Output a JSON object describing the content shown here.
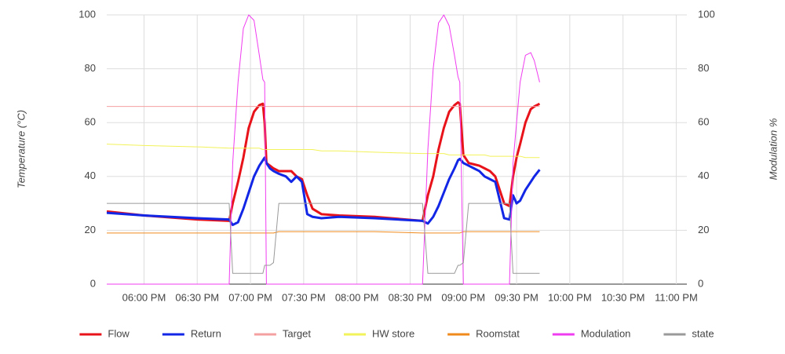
{
  "chart_data": {
    "type": "line",
    "x": [
      1059,
      1080,
      1110,
      1128,
      1130,
      1133,
      1136,
      1139,
      1142,
      1145,
      1147,
      1148,
      1149,
      1151,
      1153,
      1156,
      1160,
      1163,
      1166,
      1169,
      1172,
      1175,
      1180,
      1190,
      1210,
      1237,
      1240,
      1243,
      1246,
      1249,
      1252,
      1255,
      1257,
      1258,
      1260,
      1263,
      1266,
      1269,
      1272,
      1275,
      1278,
      1283,
      1286,
      1288,
      1290,
      1292,
      1295,
      1298,
      1300,
      1303
    ],
    "xlim": [
      1059,
      1386
    ],
    "xticks": [
      {
        "value": 1080,
        "label": "06:00 PM"
      },
      {
        "value": 1110,
        "label": "06:30 PM"
      },
      {
        "value": 1140,
        "label": "07:00 PM"
      },
      {
        "value": 1170,
        "label": "07:30 PM"
      },
      {
        "value": 1200,
        "label": "08:00 PM"
      },
      {
        "value": 1230,
        "label": "08:30 PM"
      },
      {
        "value": 1260,
        "label": "09:00 PM"
      },
      {
        "value": 1290,
        "label": "09:30 PM"
      },
      {
        "value": 1320,
        "label": "10:00 PM"
      },
      {
        "value": 1350,
        "label": "10:30 PM"
      },
      {
        "value": 1380,
        "label": "11:00 PM"
      }
    ],
    "ylabel": "Temperature (°C)",
    "y2label": "Modulation %",
    "ylim": [
      0,
      100
    ],
    "yticks": [
      0,
      20,
      40,
      60,
      80,
      100
    ],
    "y2lim": [
      0,
      100
    ],
    "y2ticks": [
      0,
      20,
      40,
      60,
      80,
      100
    ],
    "grid": true,
    "legend": "bottom",
    "series": [
      {
        "name": "Flow",
        "color": "#e8131a",
        "width": 3,
        "values": [
          27,
          25.5,
          24,
          23.5,
          30,
          38,
          47,
          58,
          64,
          66.5,
          67,
          60,
          45,
          44,
          43,
          42,
          42,
          42,
          40,
          39,
          33,
          28,
          26,
          25.5,
          25,
          23.5,
          33,
          40,
          50,
          58,
          64,
          66.5,
          67.5,
          67,
          48,
          45,
          44.5,
          44,
          43,
          42,
          40,
          30,
          29,
          40,
          47,
          52,
          60,
          65,
          66,
          67
        ]
      },
      {
        "name": "Return",
        "color": "#1226e6",
        "width": 3,
        "values": [
          26.5,
          25.5,
          24.5,
          24,
          22,
          23,
          28,
          34,
          40,
          44,
          46,
          47,
          45,
          43,
          42,
          41,
          40,
          38,
          40,
          38,
          26,
          25,
          24.5,
          25,
          24.5,
          23.5,
          22.5,
          25,
          29,
          34,
          39,
          43,
          46,
          46.5,
          45,
          44,
          43,
          42,
          40,
          39,
          38,
          24.5,
          24,
          33,
          30,
          31,
          35,
          38,
          40,
          42.5
        ]
      },
      {
        "name": "Target",
        "color": "#f4a0a0",
        "width": 1,
        "values": [
          66,
          66,
          66,
          66,
          66,
          66,
          66,
          66,
          66,
          66,
          66,
          66,
          66,
          66,
          66,
          66,
          66,
          66,
          66,
          66,
          66,
          66,
          66,
          66,
          66,
          66,
          66,
          66,
          66,
          66,
          66,
          66,
          66,
          66,
          66,
          66,
          66,
          66,
          66,
          66,
          66,
          66,
          66,
          66,
          66,
          66,
          66,
          66,
          66,
          66
        ]
      },
      {
        "name": "HW store",
        "color": "#f2f25a",
        "width": 1,
        "values": [
          52,
          51.5,
          51,
          50.5,
          50.5,
          50.5,
          50.5,
          50.5,
          50.5,
          50.5,
          50,
          50,
          50,
          50,
          50,
          50,
          50,
          50,
          50,
          50,
          50,
          50,
          49.5,
          49.5,
          49,
          48.5,
          48.5,
          48.5,
          48.5,
          48.5,
          48,
          48,
          48,
          48,
          48,
          48,
          48,
          48,
          48,
          47.5,
          47.5,
          47.5,
          47.5,
          47.5,
          47.5,
          47.5,
          47,
          47,
          47,
          47
        ]
      },
      {
        "name": "Roomstat",
        "color": "#f08a1c",
        "width": 1,
        "values": [
          19,
          19,
          19,
          19,
          19,
          19,
          19,
          19,
          19,
          19,
          19,
          19,
          19,
          19,
          19,
          19.5,
          19.5,
          19.5,
          19.5,
          19.5,
          19.5,
          19.5,
          19.5,
          19.5,
          19.5,
          19,
          19,
          19,
          19,
          19,
          19,
          19,
          19,
          19,
          19.5,
          19.5,
          19.5,
          19.5,
          19.5,
          19.5,
          19.5,
          19.5,
          19.5,
          19.5,
          19.5,
          19.5,
          19.5,
          19.5,
          19.5,
          19.5
        ]
      },
      {
        "name": "Modulation",
        "color": "#f03cf0",
        "width": 1,
        "axis": "y2",
        "values": [
          0,
          0,
          0,
          0,
          45,
          75,
          95,
          100,
          98,
          85,
          76,
          75,
          0,
          0,
          0,
          0,
          0,
          0,
          0,
          0,
          0,
          0,
          0,
          0,
          0,
          0,
          50,
          80,
          97,
          100,
          96,
          85,
          77,
          75,
          0,
          0,
          0,
          0,
          0,
          0,
          0,
          0,
          0,
          45,
          60,
          75,
          85,
          86,
          83,
          75
        ]
      },
      {
        "name": "state",
        "color": "#9a9a9a",
        "width": 1,
        "axis": "y2",
        "values": [
          30,
          30,
          30,
          30,
          4,
          4,
          4,
          4,
          4,
          4,
          4,
          7,
          7,
          7,
          8,
          30,
          30,
          30,
          30,
          30,
          30,
          30,
          30,
          30,
          30,
          30,
          4,
          4,
          4,
          4,
          4,
          4,
          7,
          7,
          8,
          30,
          30,
          30,
          30,
          30,
          30,
          30,
          30,
          4,
          4,
          4,
          4,
          4,
          4,
          4
        ]
      }
    ]
  }
}
